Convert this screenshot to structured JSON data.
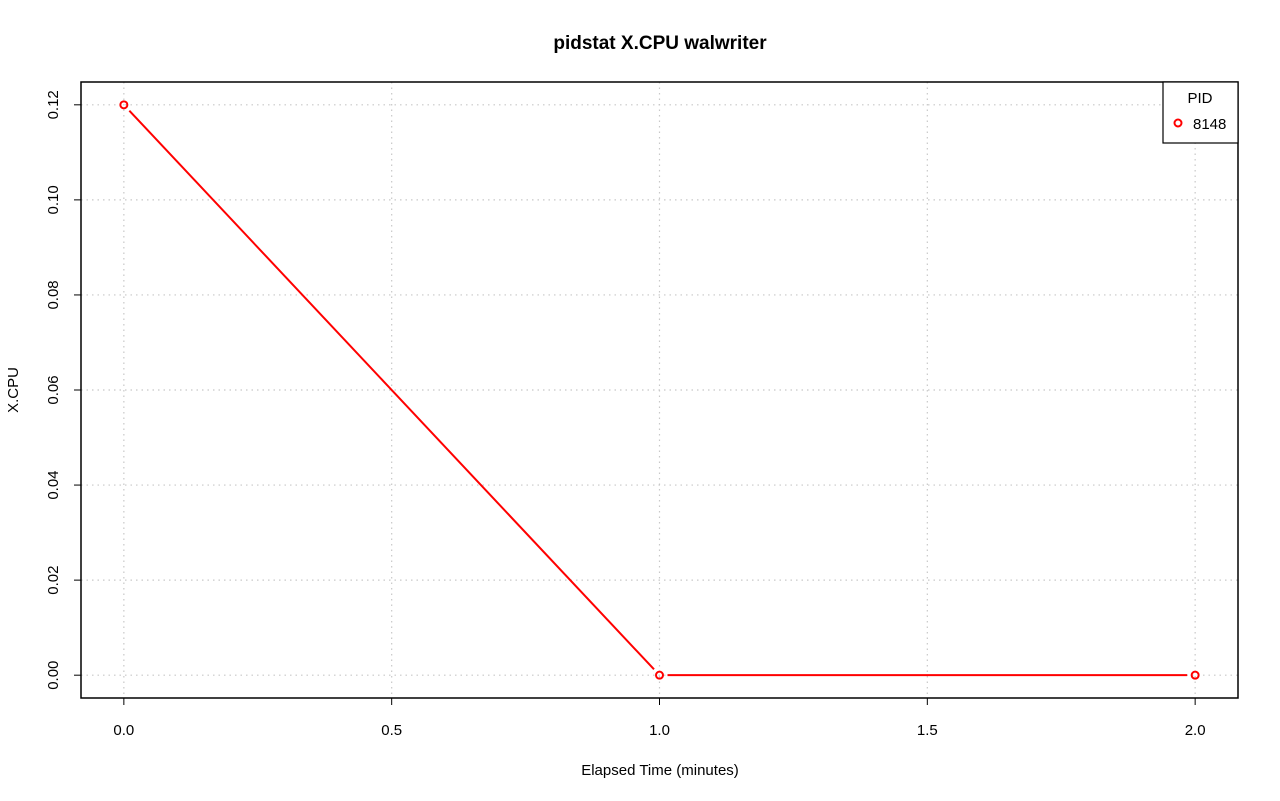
{
  "chart_data": {
    "type": "line",
    "title": "pidstat X.CPU walwriter",
    "xlabel": "Elapsed Time (minutes)",
    "ylabel": "X.CPU",
    "xlim": [
      -0.08,
      2.08
    ],
    "ylim": [
      -0.0048,
      0.1248
    ],
    "x_ticks": [
      0.0,
      0.5,
      1.0,
      1.5,
      2.0
    ],
    "x_tick_labels": [
      "0.0",
      "0.5",
      "1.0",
      "1.5",
      "2.0"
    ],
    "y_ticks": [
      0.0,
      0.02,
      0.04,
      0.06,
      0.08,
      0.1,
      0.12
    ],
    "y_tick_labels": [
      "0.00",
      "0.02",
      "0.04",
      "0.06",
      "0.08",
      "0.10",
      "0.12"
    ],
    "grid": true,
    "legend": {
      "title": "PID",
      "position": "top-right"
    },
    "series": [
      {
        "name": "8148",
        "color": "#ff0000",
        "x": [
          0.0,
          1.0,
          2.0
        ],
        "y": [
          0.12,
          0.0,
          0.0
        ]
      }
    ]
  }
}
